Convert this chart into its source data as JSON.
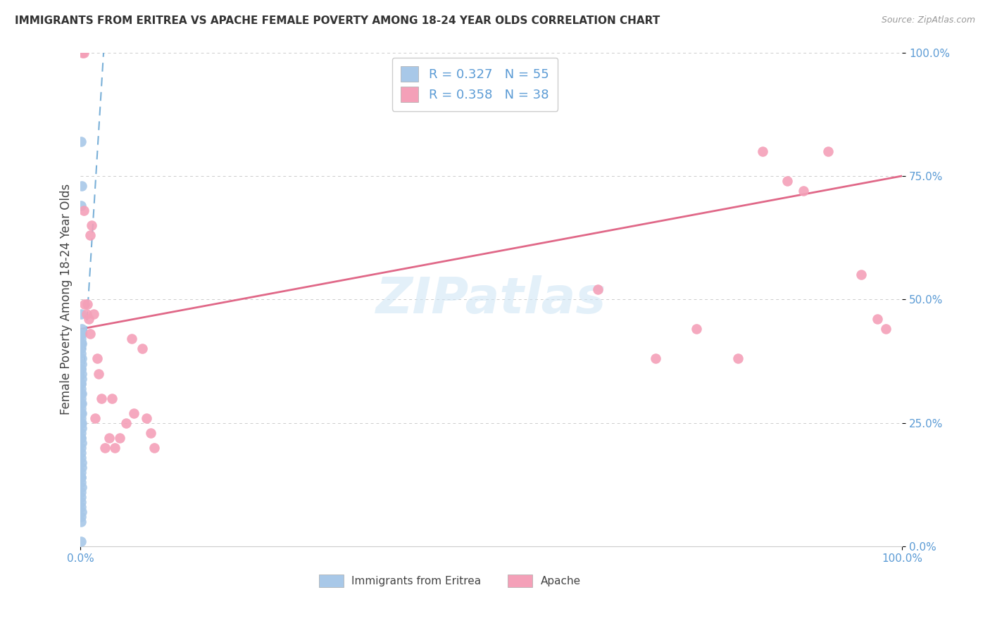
{
  "title": "IMMIGRANTS FROM ERITREA VS APACHE FEMALE POVERTY AMONG 18-24 YEAR OLDS CORRELATION CHART",
  "source": "Source: ZipAtlas.com",
  "ylabel": "Female Poverty Among 18-24 Year Olds",
  "watermark": "ZIPatlas",
  "blue_scatter_color": "#a8c8e8",
  "pink_scatter_color": "#f4a0b8",
  "blue_trend_color": "#7ab0d8",
  "pink_trend_color": "#e06888",
  "blue_tick_color": "#5b9bd5",
  "legend_eritrea_R": 0.327,
  "legend_eritrea_N": 55,
  "legend_apache_R": 0.358,
  "legend_apache_N": 38,
  "eritrea_x": [
    0.0005,
    0.001,
    0.0008,
    0.0006,
    0.001,
    0.0012,
    0.0015,
    0.0008,
    0.001,
    0.0007,
    0.0006,
    0.0009,
    0.001,
    0.0011,
    0.0008,
    0.0007,
    0.001,
    0.0012,
    0.0009,
    0.0006,
    0.0008,
    0.001,
    0.0007,
    0.0009,
    0.0011,
    0.0008,
    0.0006,
    0.001,
    0.0009,
    0.0007,
    0.0008,
    0.001,
    0.0011,
    0.0007,
    0.0009,
    0.0006,
    0.001,
    0.0008,
    0.0007,
    0.0009,
    0.001,
    0.0011,
    0.0008,
    0.0006,
    0.0007,
    0.0009,
    0.001,
    0.0008,
    0.0007,
    0.0006,
    0.0009,
    0.001,
    0.0008,
    0.0007,
    0.0006
  ],
  "eritrea_y": [
    0.82,
    0.73,
    0.69,
    0.47,
    0.44,
    0.43,
    0.43,
    0.42,
    0.41,
    0.41,
    0.4,
    0.39,
    0.38,
    0.37,
    0.36,
    0.36,
    0.35,
    0.34,
    0.33,
    0.33,
    0.32,
    0.31,
    0.31,
    0.3,
    0.29,
    0.29,
    0.28,
    0.27,
    0.27,
    0.26,
    0.25,
    0.25,
    0.24,
    0.23,
    0.22,
    0.22,
    0.21,
    0.2,
    0.19,
    0.18,
    0.17,
    0.16,
    0.15,
    0.14,
    0.14,
    0.13,
    0.12,
    0.11,
    0.1,
    0.09,
    0.08,
    0.07,
    0.06,
    0.05,
    0.01
  ],
  "apache_x": [
    0.002,
    0.004,
    0.004,
    0.013,
    0.012,
    0.005,
    0.008,
    0.007,
    0.016,
    0.01,
    0.012,
    0.02,
    0.022,
    0.025,
    0.035,
    0.018,
    0.03,
    0.042,
    0.048,
    0.038,
    0.055,
    0.065,
    0.062,
    0.075,
    0.08,
    0.085,
    0.09,
    0.83,
    0.86,
    0.88,
    0.91,
    0.95,
    0.97,
    0.98,
    0.63,
    0.7,
    0.75,
    0.8
  ],
  "apache_y": [
    1.0,
    1.0,
    0.68,
    0.65,
    0.63,
    0.49,
    0.49,
    0.47,
    0.47,
    0.46,
    0.43,
    0.38,
    0.35,
    0.3,
    0.22,
    0.26,
    0.2,
    0.2,
    0.22,
    0.3,
    0.25,
    0.27,
    0.42,
    0.4,
    0.26,
    0.23,
    0.2,
    0.8,
    0.74,
    0.72,
    0.8,
    0.55,
    0.46,
    0.44,
    0.52,
    0.38,
    0.44,
    0.38
  ],
  "ytick_values": [
    0.0,
    0.25,
    0.5,
    0.75,
    1.0
  ],
  "ytick_labels": [
    "0.0%",
    "25.0%",
    "50.0%",
    "75.0%",
    "100.0%"
  ],
  "xlim": [
    0.0,
    1.0
  ],
  "ylim": [
    0.0,
    1.0
  ],
  "pink_line_y0": 0.44,
  "pink_line_y1": 0.75,
  "blue_line_x0": 0.0,
  "blue_line_x1": 0.028,
  "blue_line_y0": 0.25,
  "blue_line_y1": 1.0
}
